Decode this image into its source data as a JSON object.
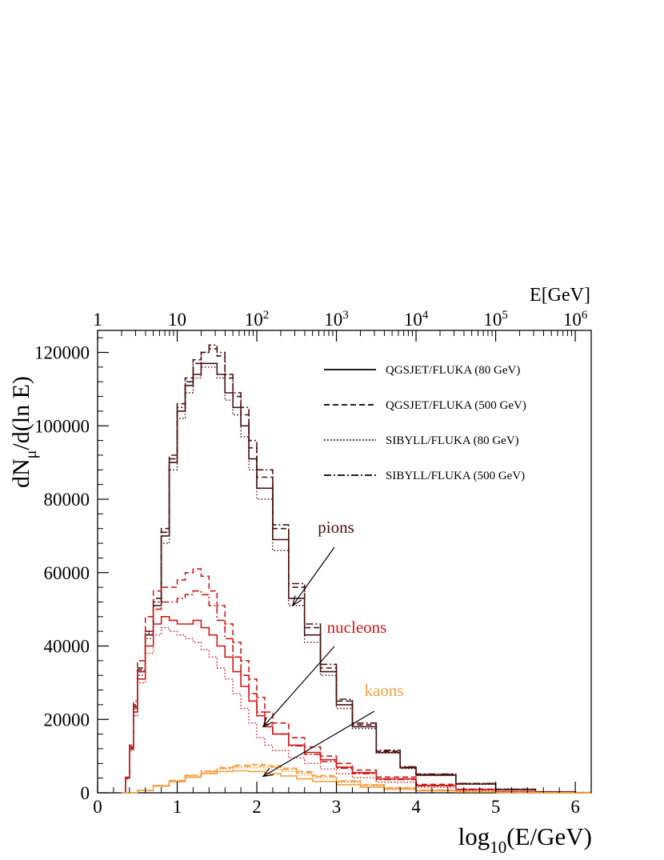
{
  "chart_data": {
    "type": "line",
    "title": "",
    "xlabel": {
      "base": "log",
      "sub": "10",
      "rest": "(E/GeV)"
    },
    "ylabel": {
      "base": "dN",
      "sub": "μ",
      "rest": "/d(ln E)"
    },
    "top_axis_label": "E[GeV]",
    "xlim": [
      0,
      6.2
    ],
    "ylim": [
      0,
      126000
    ],
    "x_ticks": [
      0,
      1,
      2,
      3,
      4,
      5,
      6
    ],
    "x_tick_labels": [
      "0",
      "1",
      "2",
      "3",
      "4",
      "5",
      "6"
    ],
    "y_ticks": [
      0,
      20000,
      40000,
      60000,
      80000,
      100000,
      120000
    ],
    "y_tick_labels": [
      "0",
      "20000",
      "40000",
      "60000",
      "80000",
      "100000",
      "120000"
    ],
    "top_ticks": [
      {
        "value": 0,
        "base": "1",
        "exp": ""
      },
      {
        "value": 1,
        "base": "10",
        "exp": ""
      },
      {
        "value": 2,
        "base": "10",
        "exp": "2"
      },
      {
        "value": 3,
        "base": "10",
        "exp": "3"
      },
      {
        "value": 4,
        "base": "10",
        "exp": "4"
      },
      {
        "value": 5,
        "base": "10",
        "exp": "5"
      },
      {
        "value": 6,
        "base": "10",
        "exp": "6"
      }
    ],
    "legend_position": "top-right",
    "legend": [
      {
        "label": "QGSJET/FLUKA (80 GeV)",
        "style": "solid"
      },
      {
        "label": "QGSJET/FLUKA (500 GeV)",
        "style": "dashed"
      },
      {
        "label": "SIBYLL/FLUKA (80 GeV)",
        "style": "dotted"
      },
      {
        "label": "SIBYLL/FLUKA (500 GeV)",
        "style": "dashdot"
      }
    ],
    "colors": {
      "pions": "#4a1010",
      "nucleons": "#d01818",
      "kaons": "#f5a040"
    },
    "annotations": [
      {
        "text": "pions",
        "group": "pions",
        "arrow_to": [
          2.45,
          51000
        ]
      },
      {
        "text": "nucleons",
        "group": "nucleons",
        "arrow_to": [
          2.08,
          18000
        ]
      },
      {
        "text": "kaons",
        "group": "kaons",
        "arrow_to": [
          2.08,
          4500
        ]
      }
    ],
    "series": [
      {
        "group": "pions",
        "style": "solid",
        "x": [
          0.3,
          0.35,
          0.4,
          0.45,
          0.5,
          0.6,
          0.7,
          0.8,
          0.9,
          1.0,
          1.1,
          1.2,
          1.3,
          1.4,
          1.5,
          1.6,
          1.7,
          1.8,
          1.9,
          2.0,
          2.2,
          2.4,
          2.6,
          2.8,
          3.0,
          3.2,
          3.5,
          3.8,
          4.0,
          4.5,
          5.0,
          5.5,
          6.0,
          6.2
        ],
        "y": [
          0,
          4000,
          12000,
          23000,
          33000,
          43000,
          51000,
          70000,
          90000,
          104000,
          111000,
          114000,
          117000,
          117000,
          114000,
          109000,
          105000,
          100000,
          91000,
          83000,
          69000,
          53000,
          43000,
          33000,
          24000,
          18000,
          11000,
          6800,
          4800,
          2400,
          900,
          250,
          50,
          0
        ]
      },
      {
        "group": "pions",
        "style": "dashed",
        "x": [
          0.3,
          0.35,
          0.4,
          0.45,
          0.5,
          0.6,
          0.7,
          0.8,
          0.9,
          1.0,
          1.1,
          1.2,
          1.3,
          1.4,
          1.5,
          1.6,
          1.7,
          1.8,
          1.9,
          2.0,
          2.2,
          2.4,
          2.6,
          2.8,
          3.0,
          3.2,
          3.5,
          3.8,
          4.0,
          4.5,
          5.0,
          5.5,
          6.0,
          6.2
        ],
        "y": [
          0,
          4200,
          12500,
          24000,
          34000,
          44000,
          53000,
          72000,
          92000,
          106000,
          113000,
          118000,
          120000,
          121000,
          119000,
          113000,
          108000,
          103000,
          94000,
          86000,
          72000,
          56000,
          45000,
          34000,
          25000,
          18500,
          11300,
          7000,
          5000,
          2500,
          950,
          260,
          55,
          0
        ]
      },
      {
        "group": "pions",
        "style": "dotted",
        "x": [
          0.3,
          0.35,
          0.4,
          0.45,
          0.5,
          0.6,
          0.7,
          0.8,
          0.9,
          1.0,
          1.1,
          1.2,
          1.3,
          1.4,
          1.5,
          1.6,
          1.7,
          1.8,
          1.9,
          2.0,
          2.2,
          2.4,
          2.6,
          2.8,
          3.0,
          3.2,
          3.5,
          3.8,
          4.0,
          4.5,
          5.0,
          5.5,
          6.0,
          6.2
        ],
        "y": [
          0,
          3800,
          11500,
          22000,
          32000,
          42000,
          50000,
          68000,
          88000,
          102000,
          109000,
          113000,
          116000,
          116000,
          113000,
          107000,
          103000,
          97000,
          88000,
          80000,
          66000,
          51000,
          41000,
          32000,
          23000,
          17500,
          10800,
          6600,
          4700,
          2300,
          880,
          240,
          50,
          0
        ]
      },
      {
        "group": "pions",
        "style": "dashdot",
        "x": [
          0.3,
          0.35,
          0.4,
          0.45,
          0.5,
          0.6,
          0.7,
          0.8,
          0.9,
          1.0,
          1.1,
          1.2,
          1.3,
          1.4,
          1.5,
          1.6,
          1.7,
          1.8,
          1.9,
          2.0,
          2.2,
          2.4,
          2.6,
          2.8,
          3.0,
          3.2,
          3.5,
          3.8,
          4.0,
          4.5,
          5.0,
          5.5,
          6.0,
          6.2
        ],
        "y": [
          0,
          4100,
          12300,
          23500,
          33500,
          43500,
          52000,
          71000,
          91000,
          105000,
          112000,
          117000,
          120000,
          122000,
          120000,
          114000,
          109000,
          105000,
          96000,
          88000,
          73000,
          57000,
          46000,
          35000,
          25500,
          19000,
          11600,
          7100,
          5100,
          2550,
          960,
          265,
          55,
          0
        ]
      },
      {
        "group": "nucleons",
        "style": "solid",
        "x": [
          0.3,
          0.35,
          0.4,
          0.45,
          0.5,
          0.6,
          0.7,
          0.8,
          0.9,
          1.0,
          1.1,
          1.2,
          1.3,
          1.4,
          1.5,
          1.6,
          1.7,
          1.8,
          1.9,
          2.0,
          2.1,
          2.2,
          2.4,
          2.6,
          2.8,
          3.0,
          3.2,
          3.5,
          4.0,
          4.5,
          5.0,
          5.5,
          6.0,
          6.2
        ],
        "y": [
          0,
          4000,
          12000,
          22000,
          31000,
          40000,
          46000,
          48000,
          47000,
          46000,
          46000,
          47000,
          45000,
          43000,
          40000,
          37000,
          33000,
          29000,
          25000,
          21000,
          18000,
          16000,
          13000,
          11000,
          9000,
          7000,
          5500,
          3800,
          2000,
          900,
          300,
          80,
          15,
          0
        ]
      },
      {
        "group": "nucleons",
        "style": "dashed",
        "x": [
          0.3,
          0.35,
          0.4,
          0.45,
          0.5,
          0.6,
          0.7,
          0.8,
          0.9,
          1.0,
          1.1,
          1.2,
          1.3,
          1.4,
          1.5,
          1.6,
          1.7,
          1.8,
          1.9,
          2.0,
          2.1,
          2.2,
          2.4,
          2.6,
          2.8,
          3.0,
          3.2,
          3.5,
          4.0,
          4.5,
          5.0,
          5.5,
          6.0,
          6.2
        ],
        "y": [
          0,
          4200,
          13000,
          25000,
          36000,
          48000,
          55000,
          56000,
          56000,
          58000,
          60000,
          61000,
          59000,
          55000,
          51000,
          46000,
          41000,
          36000,
          31000,
          26000,
          22000,
          19000,
          15000,
          12500,
          10000,
          8000,
          6200,
          4300,
          2300,
          1000,
          350,
          90,
          18,
          0
        ]
      },
      {
        "group": "nucleons",
        "style": "dotted",
        "x": [
          0.3,
          0.35,
          0.4,
          0.45,
          0.5,
          0.6,
          0.7,
          0.8,
          0.9,
          1.0,
          1.1,
          1.2,
          1.3,
          1.4,
          1.5,
          1.6,
          1.7,
          1.8,
          1.9,
          2.0,
          2.1,
          2.2,
          2.4,
          2.6,
          2.8,
          3.0,
          3.2,
          3.5,
          4.0,
          4.5,
          5.0,
          5.5,
          6.0,
          6.2
        ],
        "y": [
          0,
          3800,
          11500,
          21000,
          30000,
          38000,
          43000,
          45000,
          44000,
          43000,
          42000,
          41000,
          39000,
          37000,
          34000,
          31000,
          27000,
          23000,
          19000,
          15000,
          13000,
          11500,
          9500,
          8000,
          6500,
          5200,
          4100,
          2900,
          1500,
          650,
          220,
          60,
          12,
          0
        ]
      },
      {
        "group": "nucleons",
        "style": "dashdot",
        "x": [
          0.3,
          0.35,
          0.4,
          0.45,
          0.5,
          0.6,
          0.7,
          0.8,
          0.9,
          1.0,
          1.1,
          1.2,
          1.3,
          1.4,
          1.5,
          1.6,
          1.7,
          1.8,
          1.9,
          2.0,
          2.1,
          2.2,
          2.4,
          2.6,
          2.8,
          3.0,
          3.2,
          3.5,
          4.0,
          4.5,
          5.0,
          5.5,
          6.0,
          6.2
        ],
        "y": [
          0,
          4100,
          12500,
          23000,
          33000,
          44000,
          50000,
          52000,
          52000,
          53000,
          54000,
          55000,
          54000,
          51000,
          47000,
          42000,
          37000,
          32000,
          27000,
          22000,
          18500,
          16000,
          12800,
          10500,
          8500,
          6700,
          5200,
          3600,
          1900,
          850,
          280,
          75,
          15,
          0
        ]
      },
      {
        "group": "kaons",
        "style": "solid",
        "x": [
          0.3,
          0.5,
          0.7,
          0.9,
          1.1,
          1.3,
          1.5,
          1.7,
          1.9,
          2.1,
          2.3,
          2.5,
          2.7,
          3.0,
          3.3,
          3.6,
          4.0,
          4.5,
          5.0,
          5.5,
          6.0,
          6.2
        ],
        "y": [
          0,
          600,
          1800,
          3000,
          4200,
          5200,
          5800,
          6000,
          5800,
          5200,
          4600,
          3800,
          3100,
          2200,
          1500,
          1000,
          550,
          220,
          80,
          25,
          5,
          0
        ]
      },
      {
        "group": "kaons",
        "style": "dashed",
        "x": [
          0.3,
          0.5,
          0.7,
          0.9,
          1.1,
          1.3,
          1.5,
          1.7,
          1.9,
          2.1,
          2.3,
          2.5,
          2.7,
          3.0,
          3.3,
          3.6,
          4.0,
          4.5,
          5.0,
          5.5,
          6.0,
          6.2
        ],
        "y": [
          0,
          650,
          2000,
          3400,
          4800,
          6000,
          6900,
          7500,
          7700,
          7400,
          6700,
          5800,
          4700,
          3300,
          2200,
          1400,
          750,
          300,
          100,
          30,
          6,
          0
        ]
      },
      {
        "group": "kaons",
        "style": "dotted",
        "x": [
          0.3,
          0.5,
          0.7,
          0.9,
          1.1,
          1.3,
          1.5,
          1.7,
          1.9,
          2.1,
          2.3,
          2.5,
          2.7,
          3.0,
          3.3,
          3.6,
          4.0,
          4.5,
          5.0,
          5.5,
          6.0,
          6.2
        ],
        "y": [
          0,
          620,
          1900,
          3200,
          4500,
          5600,
          6400,
          6800,
          6800,
          6400,
          5800,
          4900,
          4000,
          2800,
          1900,
          1200,
          650,
          260,
          90,
          28,
          5,
          0
        ]
      },
      {
        "group": "kaons",
        "style": "dashdot",
        "x": [
          0.3,
          0.5,
          0.7,
          0.9,
          1.1,
          1.3,
          1.5,
          1.7,
          1.9,
          2.1,
          2.3,
          2.5,
          2.7,
          3.0,
          3.3,
          3.6,
          4.0,
          4.5,
          5.0,
          5.5,
          6.0,
          6.2
        ],
        "y": [
          0,
          640,
          1950,
          3300,
          4700,
          5800,
          6700,
          7200,
          7300,
          7000,
          6300,
          5400,
          4400,
          3100,
          2100,
          1300,
          700,
          280,
          95,
          30,
          6,
          0
        ]
      }
    ]
  }
}
